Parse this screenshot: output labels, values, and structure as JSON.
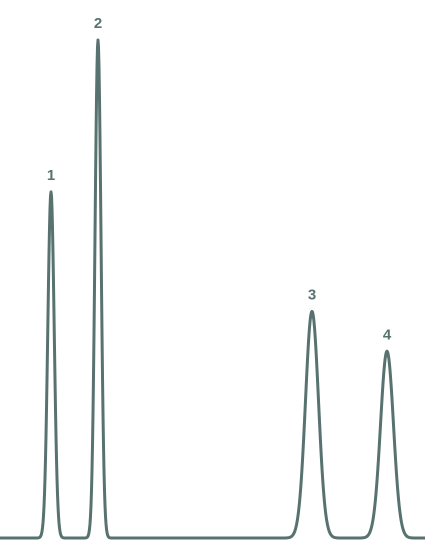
{
  "chart_data": {
    "type": "line",
    "color": "#587270",
    "baseline": 0,
    "xlim": [
      0,
      425
    ],
    "ylim": [
      0,
      100
    ],
    "peaks": [
      {
        "label": "1",
        "x": 51,
        "height": 69.5,
        "width": 3.2
      },
      {
        "label": "2",
        "x": 98,
        "height": 100,
        "width": 3.0
      },
      {
        "label": "3",
        "x": 312,
        "height": 45.5,
        "width": 6.5
      },
      {
        "label": "4",
        "x": 387,
        "height": 37.5,
        "width": 6.5
      }
    ]
  }
}
